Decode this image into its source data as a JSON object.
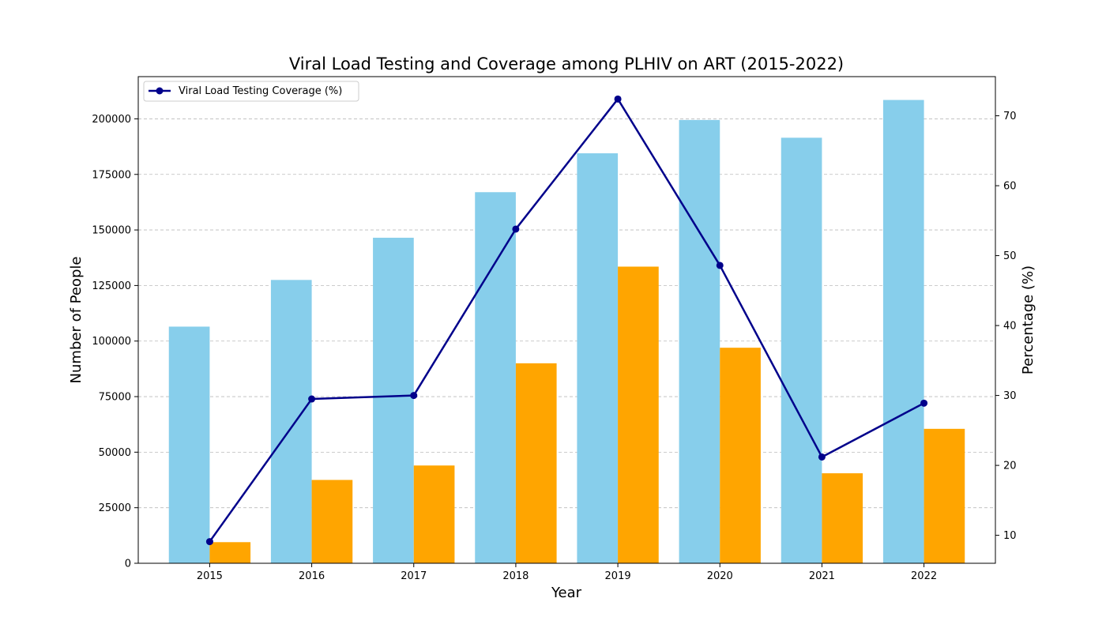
{
  "chart_data": {
    "type": "bar",
    "title": "Viral Load Testing and Coverage among PLHIV on ART (2015-2022)",
    "xlabel": "Year",
    "ylabel": "Number of People",
    "y2label": "Percentage (%)",
    "categories": [
      "2015",
      "2016",
      "2017",
      "2018",
      "2019",
      "2020",
      "2021",
      "2022"
    ],
    "series": [
      {
        "kind": "bar",
        "color": "#87CEEB",
        "axis": "left",
        "values": [
          106500,
          127500,
          146500,
          167000,
          184500,
          199500,
          191500,
          208500
        ]
      },
      {
        "kind": "bar",
        "color": "#FFA500",
        "axis": "left",
        "values": [
          9500,
          37500,
          44000,
          90000,
          133500,
          97000,
          40500,
          60500
        ]
      },
      {
        "kind": "line",
        "name": "Viral Load Testing Coverage (%)",
        "color": "#00008B",
        "axis": "right",
        "values": [
          9.1,
          29.5,
          30.0,
          53.8,
          72.4,
          48.6,
          21.2,
          28.9
        ]
      }
    ],
    "ylim": [
      0,
      219000
    ],
    "yticks": [
      0,
      25000,
      50000,
      75000,
      100000,
      125000,
      150000,
      175000,
      200000
    ],
    "y2lim": [
      6.0,
      75.6
    ],
    "y2ticks": [
      10,
      20,
      30,
      40,
      50,
      60,
      70
    ],
    "grid": "horizontal-dashed",
    "legend_position": "top-left"
  }
}
